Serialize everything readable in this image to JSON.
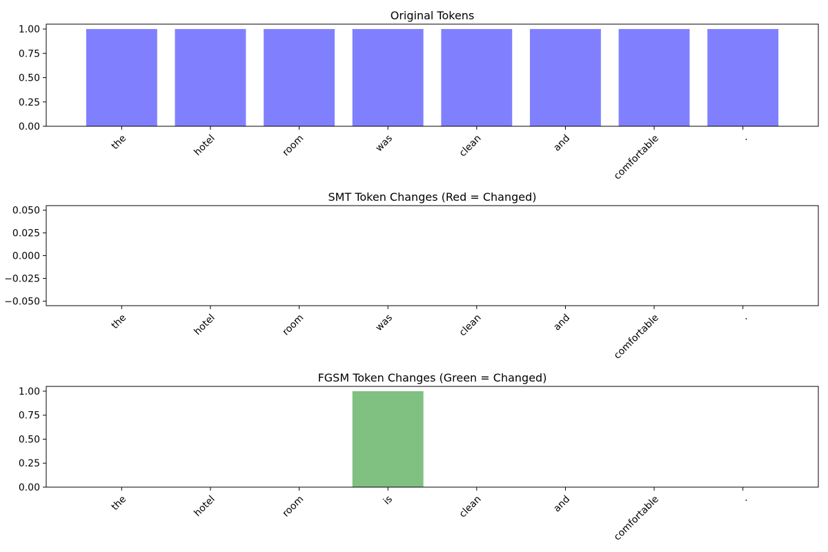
{
  "chart_data": [
    {
      "type": "bar",
      "title": "Original Tokens",
      "categories": [
        "the",
        "hotel",
        "room",
        "was",
        "clean",
        "and",
        "comfortable",
        "."
      ],
      "values": [
        1,
        1,
        1,
        1,
        1,
        1,
        1,
        1
      ],
      "color": "#8080ff",
      "ylim": [
        0,
        1.05
      ],
      "yticks": [
        "0.00",
        "0.25",
        "0.50",
        "0.75",
        "1.00"
      ],
      "xlabel": "",
      "ylabel": "",
      "grid": false
    },
    {
      "type": "bar",
      "title": "SMT Token Changes (Red = Changed)",
      "categories": [
        "the",
        "hotel",
        "room",
        "was",
        "clean",
        "and",
        "comfortable",
        "."
      ],
      "values": [
        0,
        0,
        0,
        0,
        0,
        0,
        0,
        0
      ],
      "color": "#ff8080",
      "ylim": [
        -0.055,
        0.055
      ],
      "yticks": [
        "−0.050",
        "−0.025",
        "0.000",
        "0.025",
        "0.050"
      ],
      "xlabel": "",
      "ylabel": "",
      "grid": false
    },
    {
      "type": "bar",
      "title": "FGSM Token Changes (Green = Changed)",
      "categories": [
        "the",
        "hotel",
        "room",
        "is",
        "clean",
        "and",
        "comfortable",
        "."
      ],
      "values": [
        0,
        0,
        0,
        1,
        0,
        0,
        0,
        0
      ],
      "color": "#80c080",
      "ylim": [
        0,
        1.05
      ],
      "yticks": [
        "0.00",
        "0.25",
        "0.50",
        "0.75",
        "1.00"
      ],
      "xlabel": "",
      "ylabel": "",
      "grid": false
    }
  ]
}
